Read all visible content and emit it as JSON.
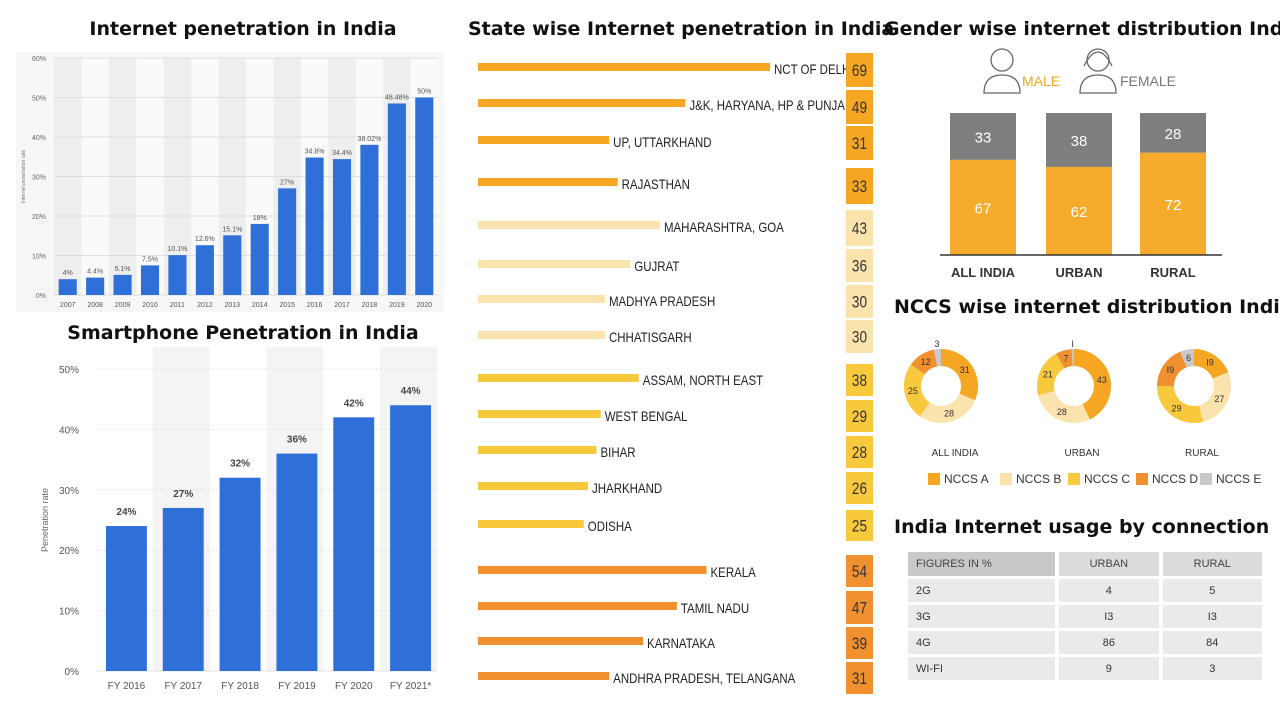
{
  "chart_data": [
    {
      "id": "internet_penetration",
      "type": "bar",
      "title": "Internet penetration in India",
      "ylabel": "Internet penetration rate",
      "xlabel": "",
      "ylim": [
        0,
        60
      ],
      "yticks": [
        "0%",
        "10%",
        "20%",
        "30%",
        "40%",
        "50%",
        "60%"
      ],
      "categories": [
        "2007",
        "2008",
        "2009",
        "2010",
        "2011",
        "2012",
        "2013",
        "2014",
        "2015",
        "2016",
        "2017",
        "2018",
        "2019",
        "2020"
      ],
      "values": [
        4,
        4.4,
        5.1,
        7.5,
        10.1,
        12.6,
        15.1,
        18,
        27,
        34.8,
        34.4,
        38.02,
        48.48,
        50
      ],
      "labels": [
        "4%",
        "4.4%",
        "5.1%",
        "7.5%",
        "10.1%",
        "12.6%",
        "15.1%",
        "18%",
        "27%",
        "34.8%",
        "34.4%",
        "38.02%",
        "48.48%",
        "50%"
      ],
      "color": "#2e6fd8",
      "grid": true
    },
    {
      "id": "smartphone_penetration",
      "type": "bar",
      "title": "Smartphone Penetration in India",
      "ylabel": "Penetration rate",
      "xlabel": "",
      "ylim": [
        0,
        50
      ],
      "yticks": [
        "0%",
        "10%",
        "20%",
        "30%",
        "40%",
        "50%"
      ],
      "categories": [
        "FY 2016",
        "FY 2017",
        "FY 2018",
        "FY 2019",
        "FY 2020",
        "FY 2021*"
      ],
      "values": [
        24,
        27,
        32,
        36,
        42,
        44
      ],
      "labels": [
        "24%",
        "27%",
        "32%",
        "36%",
        "42%",
        "44%"
      ],
      "color": "#2e6fd8",
      "grid": true
    },
    {
      "id": "state_penetration",
      "type": "bar",
      "orientation": "horizontal",
      "title": "State wise Internet penetration in India",
      "ylim": [
        0,
        69
      ],
      "items": [
        {
          "state": "NCT OF DELHI",
          "value": 69,
          "color": "#f5a623"
        },
        {
          "state": "J&K, HARYANA, HP & PUNJAB",
          "value": 49,
          "color": "#f5a623"
        },
        {
          "state": "UP, UTTARKHAND",
          "value": 31,
          "color": "#f5a623"
        },
        {
          "state": "RAJASTHAN",
          "value": 33,
          "color": "#f5a623"
        },
        {
          "state": "MAHARASHTRA, GOA",
          "value": 43,
          "color": "#fbe3ae"
        },
        {
          "state": "GUJRAT",
          "value": 36,
          "color": "#fbe3ae"
        },
        {
          "state": "MADHYA PRADESH",
          "value": 30,
          "color": "#fbe3ae"
        },
        {
          "state": "CHHATISGARH",
          "value": 30,
          "color": "#fbe3ae"
        },
        {
          "state": "ASSAM, NORTH EAST",
          "value": 38,
          "color": "#f9c93d"
        },
        {
          "state": "WEST BENGAL",
          "value": 29,
          "color": "#f9c93d"
        },
        {
          "state": "BIHAR",
          "value": 28,
          "color": "#f9c93d"
        },
        {
          "state": "JHARKHAND",
          "value": 26,
          "color": "#f9c93d"
        },
        {
          "state": "ODISHA",
          "value": 25,
          "color": "#f9c93d"
        },
        {
          "state": "KERALA",
          "value": 54,
          "color": "#f0902e"
        },
        {
          "state": "TAMIL NADU",
          "value": 47,
          "color": "#f0902e"
        },
        {
          "state": "KARNATAKA",
          "value": 39,
          "color": "#f0902e"
        },
        {
          "state": "ANDHRA PRADESH, TELANGANA",
          "value": 31,
          "color": "#f0902e"
        }
      ]
    },
    {
      "id": "gender_distribution",
      "type": "bar",
      "stacked": true,
      "title": "Gender wise internet distribution India",
      "legend": {
        "male": "MALE",
        "female": "FEMALE"
      },
      "categories": [
        "ALL INDIA",
        "URBAN",
        "RURAL"
      ],
      "series": [
        {
          "name": "MALE",
          "values": [
            67,
            62,
            72
          ],
          "color": "#f7ab2c"
        },
        {
          "name": "FEMALE",
          "values": [
            33,
            38,
            28
          ],
          "color": "#7e7e7e"
        }
      ],
      "ylim": [
        0,
        100
      ]
    },
    {
      "id": "nccs_distribution",
      "type": "pie",
      "variant": "donut",
      "title": "NCCS wise internet distribution India",
      "legend": [
        {
          "name": "NCCS A",
          "color": "#f5a623"
        },
        {
          "name": "NCCS B",
          "color": "#fbe3ae"
        },
        {
          "name": "NCCS C",
          "color": "#f9c93d"
        },
        {
          "name": "NCCS D",
          "color": "#f0902e"
        },
        {
          "name": "NCCS E",
          "color": "#c9c9c9"
        }
      ],
      "donuts": [
        {
          "name": "ALL INDIA",
          "values": [
            31,
            28,
            25,
            12,
            3
          ],
          "labels": [
            "31",
            "28",
            "25",
            "12",
            "3"
          ]
        },
        {
          "name": "URBAN",
          "values": [
            43,
            28,
            21,
            7,
            1
          ],
          "labels": [
            "43",
            "28",
            "21",
            "7",
            "I"
          ]
        },
        {
          "name": "RURAL",
          "values": [
            19,
            27,
            29,
            19,
            6
          ],
          "labels": [
            "I9",
            "27",
            "29",
            "I9",
            "6"
          ]
        }
      ]
    },
    {
      "id": "usage_by_connection",
      "type": "table",
      "title": "India Internet usage by connection",
      "columns": [
        "FIGURES IN %",
        "URBAN",
        "RURAL"
      ],
      "rows": [
        [
          "2G",
          "4",
          "5"
        ],
        [
          "3G",
          "I3",
          "I3"
        ],
        [
          "4G",
          "86",
          "84"
        ],
        [
          "WI-FI",
          "9",
          "3"
        ]
      ]
    }
  ]
}
